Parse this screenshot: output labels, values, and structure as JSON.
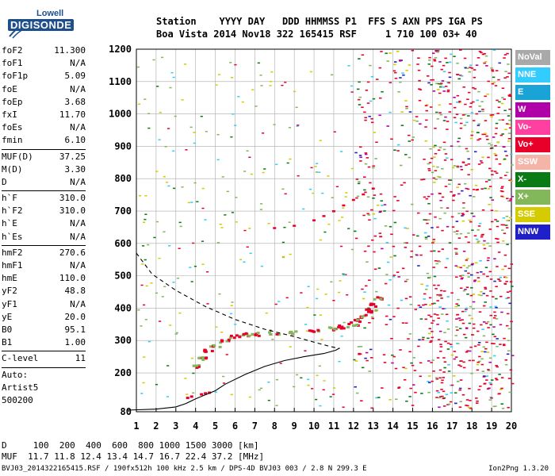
{
  "logo": {
    "top": "Lowell",
    "bottom": "DIGISONDE"
  },
  "header": {
    "line1": "Station    YYYY DAY   DDD HHMMSS P1  FFS S AXN PPS IGA PS",
    "line2": "Boa Vista 2014 Nov18 322 165415 RSF     1 710 100 03+ 40"
  },
  "params": [
    [
      {
        "k": "foF2",
        "v": "11.300"
      },
      {
        "k": "foF1",
        "v": "N/A"
      },
      {
        "k": "foF1p",
        "v": "5.09"
      },
      {
        "k": "foE",
        "v": "N/A"
      },
      {
        "k": "foEp",
        "v": "3.68"
      },
      {
        "k": "fxI",
        "v": "11.70"
      },
      {
        "k": "foEs",
        "v": "N/A"
      },
      {
        "k": "fmin",
        "v": "6.10"
      }
    ],
    [
      {
        "k": "MUF(D)",
        "v": "37.25"
      },
      {
        "k": "M(D)",
        "v": "3.30"
      },
      {
        "k": "D",
        "v": "N/A"
      }
    ],
    [
      {
        "k": "h`F",
        "v": "310.0"
      },
      {
        "k": "h`F2",
        "v": "310.0"
      },
      {
        "k": "h`E",
        "v": "N/A"
      },
      {
        "k": "h`Es",
        "v": "N/A"
      }
    ],
    [
      {
        "k": "hmF2",
        "v": "270.6"
      },
      {
        "k": "hmF1",
        "v": "N/A"
      },
      {
        "k": "hmE",
        "v": "110.0"
      },
      {
        "k": "yF2",
        "v": "48.8"
      },
      {
        "k": "yF1",
        "v": "N/A"
      },
      {
        "k": "yE",
        "v": "20.0"
      },
      {
        "k": "B0",
        "v": "95.1"
      },
      {
        "k": "B1",
        "v": "1.00"
      }
    ],
    [
      {
        "k": "C-level",
        "v": "11"
      }
    ],
    [
      {
        "k": "Auto:",
        "v": ""
      },
      {
        "k": "Artist5",
        "v": ""
      },
      {
        "k": "500200",
        "v": ""
      }
    ]
  ],
  "legend": [
    {
      "label": "NoVal",
      "color": "#a9a9a9"
    },
    {
      "label": "NNE",
      "color": "#33ccff"
    },
    {
      "label": "E",
      "color": "#1aa3d6"
    },
    {
      "label": "W",
      "color": "#b000a8"
    },
    {
      "label": "Vo-",
      "color": "#ff40a0"
    },
    {
      "label": "Vo+",
      "color": "#e8002a"
    },
    {
      "label": "SSW",
      "color": "#f4b4a8"
    },
    {
      "label": "X-",
      "color": "#0a7a14"
    },
    {
      "label": "X+",
      "color": "#82b85a"
    },
    {
      "label": "SSE",
      "color": "#d4cc00"
    },
    {
      "label": "NNW",
      "color": "#2020c8"
    }
  ],
  "bottom": {
    "line1": "D     100  200  400  600  800 1000 1500 3000 [km]",
    "line2": "MUF  11.7 11.8 12.4 13.4 14.7 16.7 22.4 37.2 [MHz]"
  },
  "footer": "BVJ03_2014322165415.RSF / 190fx512h 100 kHz 2.5 km / DPS-4D BVJ03 003 / 2.8 N 299.3 E",
  "version": "Ion2Png 1.3.20",
  "chart_data": {
    "type": "scatter",
    "x_ticks": [
      1,
      2,
      3,
      4,
      5,
      6,
      7,
      8,
      9,
      10,
      11,
      12,
      13,
      14,
      15,
      16,
      17,
      18,
      19,
      20
    ],
    "y_ticks": [
      80,
      200,
      300,
      400,
      500,
      600,
      700,
      800,
      900,
      1000,
      1100,
      1200
    ],
    "xlim": [
      1,
      20
    ],
    "ylim": [
      80,
      1200
    ],
    "grid": true,
    "f2_trace": [
      [
        4.0,
        220
      ],
      [
        4.3,
        245
      ],
      [
        4.7,
        270
      ],
      [
        5.0,
        285
      ],
      [
        5.5,
        300
      ],
      [
        6.0,
        312
      ],
      [
        6.5,
        318
      ],
      [
        7.0,
        320
      ],
      [
        8.0,
        322
      ],
      [
        9.0,
        325
      ],
      [
        10.0,
        330
      ],
      [
        11.0,
        337
      ],
      [
        11.5,
        343
      ],
      [
        12.0,
        352
      ],
      [
        12.3,
        362
      ],
      [
        12.6,
        375
      ],
      [
        12.9,
        392
      ],
      [
        13.1,
        410
      ],
      [
        13.3,
        430
      ]
    ],
    "upper_trace": [
      [
        8.0,
        648
      ],
      [
        9.0,
        655
      ],
      [
        10.0,
        672
      ],
      [
        10.5,
        685
      ],
      [
        11.0,
        700
      ],
      [
        11.5,
        718
      ],
      [
        12.0,
        735
      ],
      [
        12.5,
        752
      ],
      [
        13.0,
        770
      ]
    ],
    "profile_solid": [
      [
        0.5,
        85
      ],
      [
        2.0,
        88
      ],
      [
        3.0,
        95
      ],
      [
        3.5,
        105
      ],
      [
        4.0,
        120
      ],
      [
        5.0,
        145
      ],
      [
        5.5,
        165
      ],
      [
        6.5,
        195
      ],
      [
        7.5,
        220
      ],
      [
        8.5,
        238
      ],
      [
        9.5,
        250
      ],
      [
        10.5,
        260
      ],
      [
        11.1,
        270
      ],
      [
        11.3,
        277
      ]
    ],
    "profile_dashed": [
      [
        1.0,
        570
      ],
      [
        1.8,
        505
      ],
      [
        3.0,
        455
      ],
      [
        4.5,
        405
      ],
      [
        6.0,
        365
      ],
      [
        7.5,
        335
      ],
      [
        9.0,
        312
      ],
      [
        10.0,
        295
      ],
      [
        10.8,
        282
      ],
      [
        11.3,
        275
      ]
    ]
  }
}
